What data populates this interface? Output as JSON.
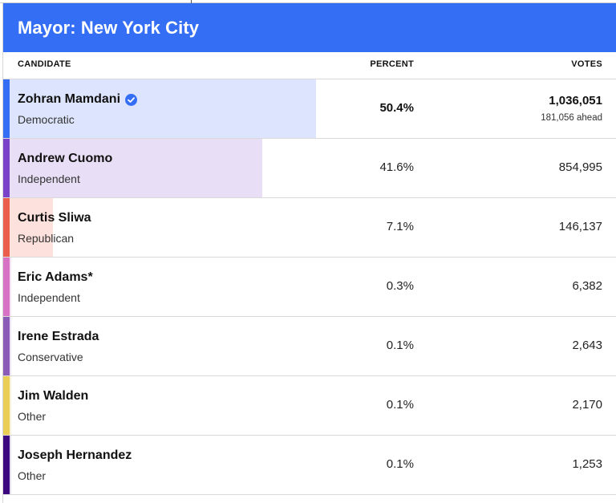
{
  "race": {
    "title": "Mayor: New York City"
  },
  "columns": {
    "candidate": "CANDIDATE",
    "percent": "PERCENT",
    "votes": "VOTES"
  },
  "colors": {
    "header": "#346ef4",
    "winner_check": "#346ef4"
  },
  "candidates": [
    {
      "name": "Zohran Mamdani",
      "party": "Democratic",
      "percent": "50.4%",
      "share": 0.504,
      "votes": "1,036,051",
      "ahead": "181,056 ahead",
      "winner": true,
      "stripe": "#346ef4",
      "fill": "#dce5fd",
      "icon": "verified-check-icon"
    },
    {
      "name": "Andrew Cuomo",
      "party": "Independent",
      "percent": "41.6%",
      "share": 0.416,
      "votes": "854,995",
      "stripe": "#7a42c8",
      "fill": "#e8def5"
    },
    {
      "name": "Curtis Sliwa",
      "party": "Republican",
      "percent": "7.1%",
      "share": 0.071,
      "votes": "146,137",
      "stripe": "#eb5e4b",
      "fill": "#fde1dc"
    },
    {
      "name": "Eric Adams*",
      "party": "Independent",
      "percent": "0.3%",
      "share": 0.003,
      "votes": "6,382",
      "stripe": "#d772c5",
      "fill": "#f6e2f2"
    },
    {
      "name": "Irene Estrada",
      "party": "Conservative",
      "percent": "0.1%",
      "share": 0.001,
      "votes": "2,643",
      "stripe": "#8a5cb8",
      "fill": "#ece3f6"
    },
    {
      "name": "Jim Walden",
      "party": "Other",
      "percent": "0.1%",
      "share": 0.001,
      "votes": "2,170",
      "stripe": "#e9cd55",
      "fill": "#faf3d6"
    },
    {
      "name": "Joseph Hernandez",
      "party": "Other",
      "percent": "0.1%",
      "share": 0.001,
      "votes": "1,253",
      "stripe": "#3c0a7e",
      "fill": "#e4dcef"
    }
  ]
}
